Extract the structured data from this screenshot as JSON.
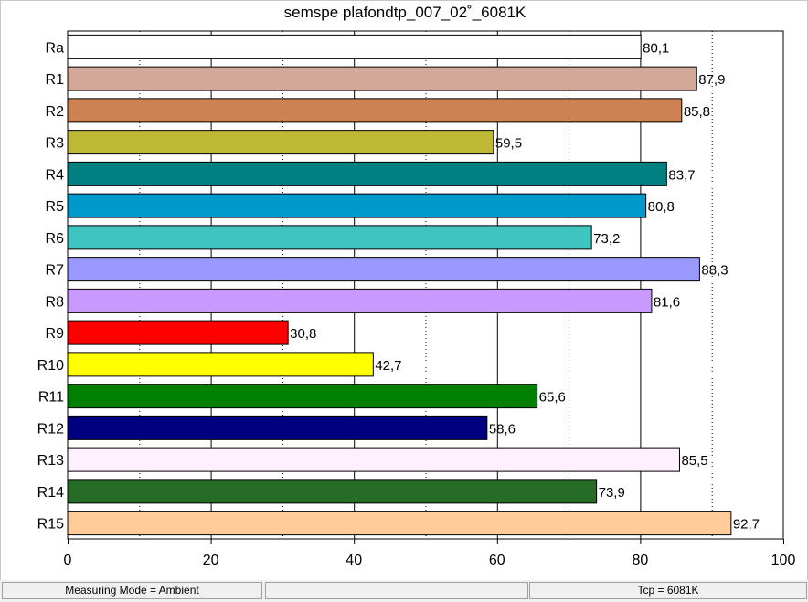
{
  "chart_data": {
    "type": "bar",
    "orientation": "horizontal",
    "title": "semspe plafondtp_007_02˚_6081K",
    "categories": [
      "Ra",
      "R1",
      "R2",
      "R3",
      "R4",
      "R5",
      "R6",
      "R7",
      "R8",
      "R9",
      "R10",
      "R11",
      "R12",
      "R13",
      "R14",
      "R15"
    ],
    "values": [
      80.1,
      87.9,
      85.8,
      59.5,
      83.7,
      80.8,
      73.2,
      88.3,
      81.6,
      30.8,
      42.7,
      65.6,
      58.6,
      85.5,
      73.9,
      92.7
    ],
    "value_labels": [
      "80,1",
      "87,9",
      "85,8",
      "59,5",
      "83,7",
      "80,8",
      "73,2",
      "88,3",
      "81,6",
      "30,8",
      "42,7",
      "65,6",
      "58,6",
      "85,5",
      "73,9",
      "92,7"
    ],
    "colors": [
      "#ffffff",
      "#d4a898",
      "#cd8254",
      "#bfb834",
      "#008080",
      "#0099cc",
      "#40c4c0",
      "#9999ff",
      "#c89aff",
      "#ff0000",
      "#ffff00",
      "#008000",
      "#000080",
      "#fff0ff",
      "#266b26",
      "#ffcc99"
    ],
    "xlim": [
      0,
      100
    ],
    "xticks": [
      0,
      20,
      40,
      60,
      80,
      100
    ],
    "grid": "vertical"
  },
  "status": {
    "measuring_mode": "Measuring Mode = Ambient",
    "middle1": "",
    "middle2": "",
    "tcp": "Tcp = 6081K"
  }
}
